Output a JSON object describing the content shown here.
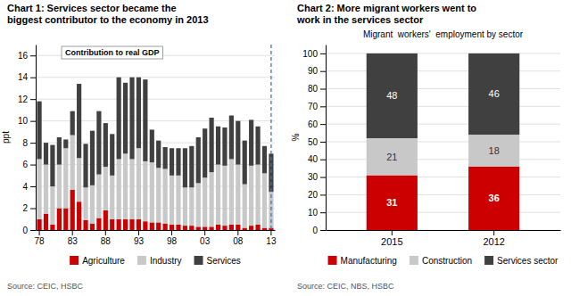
{
  "chart_data": [
    {
      "type": "bar",
      "title": "Chart 1: Services sector became the\nbiggest contributor to the economy in 2013",
      "ylabel": "ppt",
      "annotation": "Contribution to real GDP",
      "source": "Source: CEIC, HSBC",
      "categories": [
        "78",
        null,
        null,
        null,
        null,
        "83",
        null,
        null,
        null,
        null,
        "88",
        null,
        null,
        null,
        null,
        "93",
        null,
        null,
        null,
        null,
        "98",
        null,
        null,
        null,
        null,
        "03",
        null,
        null,
        null,
        null,
        "08",
        null,
        null,
        null,
        null,
        "13"
      ],
      "series": [
        {
          "name": "Agriculture",
          "color": "#cc0000",
          "values": [
            1.0,
            1.5,
            0.5,
            2.0,
            2.0,
            3.7,
            2.6,
            0.9,
            0.6,
            1.1,
            1.8,
            1.0,
            1.0,
            1.0,
            1.0,
            1.0,
            0.8,
            0.7,
            0.7,
            0.6,
            0.5,
            0.5,
            0.4,
            0.4,
            0.3,
            0.3,
            0.3,
            0.5,
            0.4,
            0.5,
            0.5,
            0.2,
            0.4,
            0.5,
            0.2,
            0.2
          ]
        },
        {
          "name": "Industry",
          "color": "#c8c8c8",
          "values": [
            5.5,
            4.5,
            3.5,
            4.0,
            5.5,
            5.0,
            4.0,
            3.0,
            3.5,
            4.0,
            4.0,
            4.0,
            5.5,
            6.0,
            5.5,
            6.5,
            5.5,
            5.5,
            5.0,
            5.0,
            4.5,
            4.5,
            3.5,
            3.5,
            4.0,
            4.5,
            5.0,
            5.5,
            5.5,
            6.0,
            5.5,
            4.0,
            5.5,
            5.5,
            5.0,
            3.3
          ]
        },
        {
          "name": "Services",
          "color": "#404040",
          "values": [
            5.3,
            2.0,
            3.8,
            2.5,
            0.8,
            2.2,
            6.8,
            4.0,
            5.0,
            5.8,
            4.0,
            3.8,
            7.5,
            6.5,
            7.5,
            6.5,
            7.5,
            3.0,
            2.5,
            2.0,
            2.5,
            2.5,
            3.6,
            3.8,
            4.2,
            4.5,
            5.0,
            3.5,
            3.5,
            4.0,
            4.0,
            4.0,
            4.2,
            3.5,
            2.5,
            3.5
          ]
        }
      ],
      "ylim": [
        0,
        17
      ],
      "yticks": [
        0,
        2,
        4,
        6,
        8,
        10,
        12,
        14,
        16
      ],
      "stacked": true,
      "grid": true,
      "legend": "bottom",
      "vline": {
        "category": "13",
        "color": "#4472c4",
        "line_style": "dashed"
      }
    },
    {
      "type": "bar",
      "title": "Chart 2: More migrant workers went to\nwork in the services sector",
      "subtitle": "Migrant  workers'  employment by sector",
      "ylabel": "%",
      "source": "Source: CEIC, NBS, HSBC",
      "categories": [
        "2015",
        "2012"
      ],
      "series": [
        {
          "name": "Manufacturing",
          "color": "#cc0000",
          "values": [
            31,
            36
          ]
        },
        {
          "name": "Construction",
          "color": "#c8c8c8",
          "values": [
            21,
            18
          ]
        },
        {
          "name": "Services sector",
          "color": "#404040",
          "values": [
            48,
            46
          ]
        }
      ],
      "ylim": [
        0,
        105
      ],
      "yticks": [
        0,
        10,
        20,
        30,
        40,
        50,
        60,
        70,
        80,
        90,
        100
      ],
      "stacked": true,
      "grid": true,
      "legend": "bottom",
      "data_labels": true
    }
  ]
}
